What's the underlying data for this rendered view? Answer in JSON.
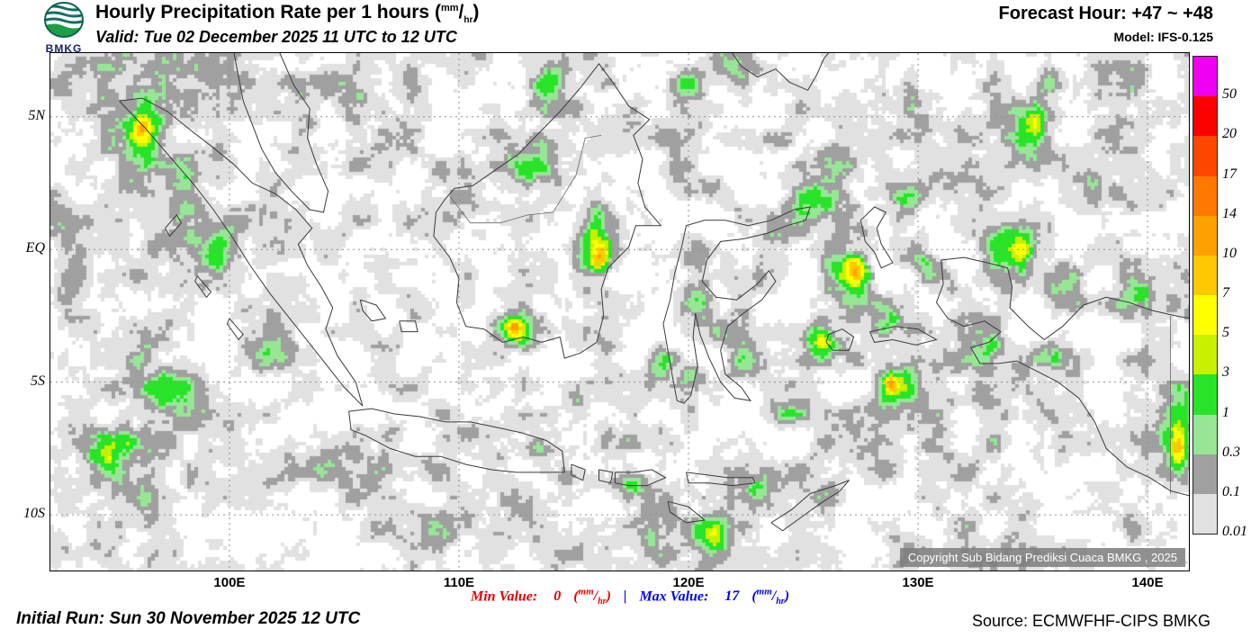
{
  "header": {
    "logo_text": "BMKG",
    "title": "Hourly Precipitation Rate per 1 hours",
    "unit_num": "mm",
    "unit_den": "hr",
    "valid": "Valid: Tue 02 December 2025 11 UTC to 12 UTC",
    "forecast_hour": "Forecast Hour: +47 ~ +48",
    "model": "Model: IFS-0.125"
  },
  "map": {
    "copyright": "Copyright Sub Bidang Prediksi Cuaca BMKG , 2025",
    "extent": {
      "lon_min": 92.2,
      "lon_max": 141.8,
      "lat_min": -12.1,
      "lat_max": 7.4
    },
    "lat_ticks": [
      {
        "label": "5N",
        "lat": 5
      },
      {
        "label": "EQ",
        "lat": 0
      },
      {
        "label": "5S",
        "lat": -5
      },
      {
        "label": "10S",
        "lat": -10
      }
    ],
    "lon_ticks": [
      {
        "label": "100E",
        "lon": 100
      },
      {
        "label": "110E",
        "lon": 110
      },
      {
        "label": "120E",
        "lon": 120
      },
      {
        "label": "130E",
        "lon": 130
      },
      {
        "label": "140E",
        "lon": 140
      }
    ],
    "cells": [
      {
        "lon": 96,
        "lat": 3,
        "rx": 2.5,
        "ry": 2.5,
        "a": 0.18
      },
      {
        "lon": 93.5,
        "lat": 6.8,
        "rx": 1.5,
        "ry": 1.2,
        "a": 0.25
      },
      {
        "lon": 99,
        "lat": 7,
        "rx": 2,
        "ry": 1,
        "a": 0.2
      },
      {
        "lon": 105,
        "lat": 6,
        "rx": 2,
        "ry": 1.3,
        "a": 0.15
      },
      {
        "lon": 92.8,
        "lat": -1,
        "rx": 1,
        "ry": 3,
        "a": 0.2
      },
      {
        "lon": 104,
        "lat": -8.5,
        "rx": 3,
        "ry": 1.5,
        "a": 0.12
      },
      {
        "lon": 112,
        "lat": -10.5,
        "rx": 3,
        "ry": 1.2,
        "a": 0.15
      },
      {
        "lon": 121,
        "lat": -11,
        "rx": 3,
        "ry": 1.2,
        "a": 0.15
      },
      {
        "lon": 131.5,
        "lat": -6.5,
        "rx": 2.5,
        "ry": 2,
        "a": 0.12
      },
      {
        "lon": 138,
        "lat": 6,
        "rx": 2.5,
        "ry": 2,
        "a": 0.15
      },
      {
        "lon": 128,
        "lat": 5.5,
        "rx": 2,
        "ry": 1.5,
        "a": 0.12
      },
      {
        "lon": 96.4,
        "lat": 4.3,
        "rx": 1.0,
        "ry": 1.3,
        "a": 0.5
      },
      {
        "lon": 96.2,
        "lat": 4.6,
        "rx": 0.4,
        "ry": 0.5,
        "a": 0.38
      },
      {
        "lon": 98.0,
        "lat": 2.2,
        "rx": 0.8,
        "ry": 1.0,
        "a": 0.35
      },
      {
        "lon": 99.6,
        "lat": 0.3,
        "rx": 0.9,
        "ry": 1.4,
        "a": 0.42
      },
      {
        "lon": 101.8,
        "lat": -3.2,
        "rx": 1.2,
        "ry": 1.1,
        "a": 0.4
      },
      {
        "lon": 97.3,
        "lat": -5.4,
        "rx": 1.6,
        "ry": 1.2,
        "a": 0.45
      },
      {
        "lon": 94.8,
        "lat": -7.6,
        "rx": 1.5,
        "ry": 1.2,
        "a": 0.42
      },
      {
        "lon": 96.5,
        "lat": -9.5,
        "rx": 1.5,
        "ry": 1.0,
        "a": 0.35
      },
      {
        "lon": 113.2,
        "lat": 3.2,
        "rx": 1.1,
        "ry": 1.1,
        "a": 0.42
      },
      {
        "lon": 113.6,
        "lat": 5.9,
        "rx": 1.0,
        "ry": 0.9,
        "a": 0.4
      },
      {
        "lon": 116.0,
        "lat": 0.2,
        "rx": 0.7,
        "ry": 1.6,
        "a": 0.55
      },
      {
        "lon": 116.2,
        "lat": -0.4,
        "rx": 0.35,
        "ry": 0.5,
        "a": 0.5
      },
      {
        "lon": 112.4,
        "lat": -2.9,
        "rx": 0.9,
        "ry": 0.7,
        "a": 0.5
      },
      {
        "lon": 112.4,
        "lat": -3.0,
        "rx": 0.35,
        "ry": 0.35,
        "a": 0.45
      },
      {
        "lon": 107.0,
        "lat": -6.9,
        "rx": 0.8,
        "ry": 0.5,
        "a": 0.38
      },
      {
        "lon": 110.3,
        "lat": -7.0,
        "rx": 0.9,
        "ry": 0.5,
        "a": 0.35
      },
      {
        "lon": 113.5,
        "lat": -7.6,
        "rx": 0.8,
        "ry": 0.5,
        "a": 0.33
      },
      {
        "lon": 108.5,
        "lat": -10.5,
        "rx": 1.5,
        "ry": 0.8,
        "a": 0.3
      },
      {
        "lon": 117.6,
        "lat": -8.8,
        "rx": 0.9,
        "ry": 0.5,
        "a": 0.42
      },
      {
        "lon": 120.9,
        "lat": -11.0,
        "rx": 0.9,
        "ry": 0.8,
        "a": 0.5
      },
      {
        "lon": 122.8,
        "lat": -9.2,
        "rx": 0.8,
        "ry": 0.5,
        "a": 0.35
      },
      {
        "lon": 120.4,
        "lat": -1.8,
        "rx": 0.7,
        "ry": 1.2,
        "a": 0.4
      },
      {
        "lon": 120.1,
        "lat": -4.6,
        "rx": 0.7,
        "ry": 0.7,
        "a": 0.35
      },
      {
        "lon": 122.4,
        "lat": -4.2,
        "rx": 0.7,
        "ry": 0.9,
        "a": 0.4
      },
      {
        "lon": 123.8,
        "lat": 0.9,
        "rx": 0.9,
        "ry": 0.7,
        "a": 0.38
      },
      {
        "lon": 120.1,
        "lat": 6.3,
        "rx": 0.8,
        "ry": 0.7,
        "a": 0.38
      },
      {
        "lon": 125.6,
        "lat": 1.8,
        "rx": 1.0,
        "ry": 1.0,
        "a": 0.45
      },
      {
        "lon": 127.1,
        "lat": -0.8,
        "rx": 1.0,
        "ry": 1.2,
        "a": 0.5
      },
      {
        "lon": 127.3,
        "lat": -0.6,
        "rx": 0.4,
        "ry": 0.5,
        "a": 0.42
      },
      {
        "lon": 125.9,
        "lat": -3.4,
        "rx": 0.9,
        "ry": 0.9,
        "a": 0.45
      },
      {
        "lon": 125.9,
        "lat": -3.5,
        "rx": 0.35,
        "ry": 0.4,
        "a": 0.45
      },
      {
        "lon": 128.6,
        "lat": -2.4,
        "rx": 0.7,
        "ry": 0.7,
        "a": 0.38
      },
      {
        "lon": 128.9,
        "lat": -5.2,
        "rx": 0.8,
        "ry": 0.7,
        "a": 0.45
      },
      {
        "lon": 128.8,
        "lat": -5.1,
        "rx": 0.35,
        "ry": 0.35,
        "a": 0.5
      },
      {
        "lon": 124.4,
        "lat": -6.2,
        "rx": 0.8,
        "ry": 0.5,
        "a": 0.35
      },
      {
        "lon": 134.8,
        "lat": 4.3,
        "rx": 1.2,
        "ry": 1.5,
        "a": 0.45
      },
      {
        "lon": 135.2,
        "lat": 4.8,
        "rx": 0.5,
        "ry": 0.6,
        "a": 0.42
      },
      {
        "lon": 137.8,
        "lat": 2.2,
        "rx": 1.0,
        "ry": 1.0,
        "a": 0.4
      },
      {
        "lon": 134.3,
        "lat": -0.2,
        "rx": 1.1,
        "ry": 1.3,
        "a": 0.5
      },
      {
        "lon": 134.5,
        "lat": 0.0,
        "rx": 0.45,
        "ry": 0.5,
        "a": 0.42
      },
      {
        "lon": 136.5,
        "lat": -1.5,
        "rx": 0.9,
        "ry": 0.9,
        "a": 0.4
      },
      {
        "lon": 139.5,
        "lat": -1.5,
        "rx": 0.9,
        "ry": 0.9,
        "a": 0.38
      },
      {
        "lon": 141.3,
        "lat": -6.8,
        "rx": 0.7,
        "ry": 1.8,
        "a": 0.5
      },
      {
        "lon": 141.4,
        "lat": -7.6,
        "rx": 0.35,
        "ry": 0.8,
        "a": 0.45
      },
      {
        "lon": 133.0,
        "lat": -3.8,
        "rx": 0.8,
        "ry": 0.7,
        "a": 0.35
      },
      {
        "lon": 130.3,
        "lat": -0.5,
        "rx": 0.6,
        "ry": 0.8,
        "a": 0.35
      },
      {
        "lon": 118.9,
        "lat": -4.3,
        "rx": 0.5,
        "ry": 0.6,
        "a": 0.3
      },
      {
        "lon": 114.8,
        "lat": -8.6,
        "rx": 0.7,
        "ry": 0.4,
        "a": 0.35
      },
      {
        "lon": 119.5,
        "lat": 2.8,
        "rx": 0.8,
        "ry": 0.8,
        "a": 0.3
      },
      {
        "lon": 122.0,
        "lat": 6.8,
        "rx": 0.8,
        "ry": 0.6,
        "a": 0.35
      },
      {
        "lon": 126.5,
        "lat": 3.5,
        "rx": 0.8,
        "ry": 0.8,
        "a": 0.3
      },
      {
        "lon": 129.5,
        "lat": 2.0,
        "rx": 0.7,
        "ry": 0.7,
        "a": 0.3
      },
      {
        "lon": 132.5,
        "lat": -5.5,
        "rx": 0.7,
        "ry": 0.6,
        "a": 0.3
      },
      {
        "lon": 136.0,
        "lat": -4.0,
        "rx": 0.8,
        "ry": 0.6,
        "a": 0.3
      }
    ]
  },
  "legend": {
    "entries": [
      {
        "color": "#f000f0",
        "label": "50"
      },
      {
        "color": "#fa0000",
        "label": "20"
      },
      {
        "color": "#ff4600",
        "label": "17"
      },
      {
        "color": "#ff7800",
        "label": "14"
      },
      {
        "color": "#ffa000",
        "label": "10"
      },
      {
        "color": "#ffc800",
        "label": "7"
      },
      {
        "color": "#ffff00",
        "label": "5"
      },
      {
        "color": "#c8f000",
        "label": "3"
      },
      {
        "color": "#28e428",
        "label": "1"
      },
      {
        "color": "#96e696",
        "label": "0.3"
      },
      {
        "color": "#a0a0a0",
        "label": "0.1"
      },
      {
        "color": "#e1e1e1",
        "label": "0.01"
      }
    ]
  },
  "footer": {
    "initial_run": "Initial Run: Sun 30 November 2025 12 UTC",
    "min_label": "Min Value:",
    "min_value": "0",
    "separator": "|",
    "max_label": "Max Value:",
    "max_value": "17",
    "unit_num": "mm",
    "unit_den": "hr",
    "source": "Source: ECMWFHF-CIPS BMKG"
  }
}
